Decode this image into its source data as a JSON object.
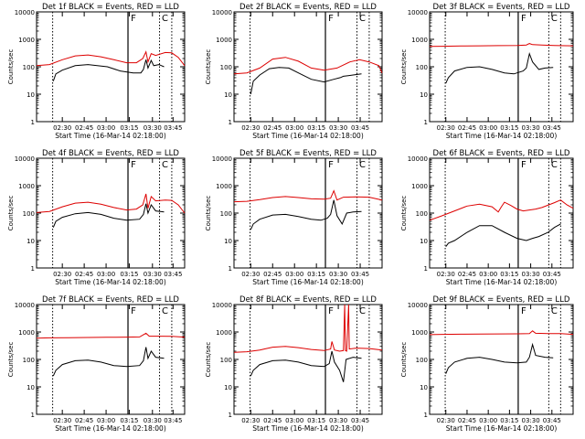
{
  "chart_data": {
    "type": "line",
    "yscale": "log",
    "ylim": [
      1,
      10000
    ],
    "y_ticks": [
      "1",
      "10",
      "100",
      "1000",
      "10000"
    ],
    "xlabel": "Start Time (16-Mar-14 02:18:00)",
    "ylabel": "Counts/sec",
    "x_ticks_left": [
      "02:30",
      "02:45",
      "03:00",
      "03:15",
      "03:30",
      "03:45"
    ],
    "x_ticks_right": [
      "02:30",
      "02:45",
      "03:00",
      "03:15",
      "03:30",
      "03:45"
    ],
    "colors": {
      "events": "#000000",
      "lld": "#dd0000"
    },
    "panels": [
      {
        "title": "Det 1f BLACK = Events, RED = LLD",
        "markers": [
          "F",
          "C"
        ],
        "events": [
          [
            2.6,
            30
          ],
          [
            3.0,
            55
          ],
          [
            4.0,
            75
          ],
          [
            6.0,
            110
          ],
          [
            8.0,
            120
          ],
          [
            11.0,
            100
          ],
          [
            13.0,
            70
          ],
          [
            15.0,
            60
          ],
          [
            16.2,
            60
          ],
          [
            16.6,
            80
          ],
          [
            17.0,
            180
          ],
          [
            17.3,
            90
          ],
          [
            17.8,
            170
          ],
          [
            18.2,
            110
          ],
          [
            19.0,
            120
          ],
          [
            19.8,
            100
          ]
        ],
        "lld": [
          [
            0.0,
            110
          ],
          [
            2.0,
            120
          ],
          [
            4.0,
            180
          ],
          [
            6.0,
            250
          ],
          [
            8.0,
            270
          ],
          [
            10.0,
            230
          ],
          [
            12.0,
            180
          ],
          [
            14.0,
            140
          ],
          [
            15.5,
            140
          ],
          [
            16.5,
            200
          ],
          [
            17.0,
            350
          ],
          [
            17.3,
            150
          ],
          [
            17.8,
            300
          ],
          [
            18.5,
            260
          ],
          [
            20.0,
            330
          ],
          [
            21.0,
            320
          ],
          [
            22.0,
            220
          ],
          [
            23.0,
            110
          ]
        ]
      },
      {
        "title": "Det 2f BLACK = Events, RED = LLD",
        "markers": [
          "F",
          "C"
        ],
        "events": [
          [
            2.6,
            10
          ],
          [
            3.0,
            30
          ],
          [
            4.0,
            50
          ],
          [
            5.5,
            85
          ],
          [
            7.0,
            95
          ],
          [
            8.5,
            90
          ],
          [
            10.0,
            60
          ],
          [
            12.0,
            35
          ],
          [
            14.0,
            28
          ],
          [
            15.5,
            35
          ],
          [
            16.5,
            40
          ],
          [
            17.0,
            45
          ],
          [
            18.5,
            50
          ],
          [
            19.8,
            55
          ]
        ],
        "lld": [
          [
            0.0,
            55
          ],
          [
            2.0,
            60
          ],
          [
            4.0,
            90
          ],
          [
            6.0,
            190
          ],
          [
            8.0,
            220
          ],
          [
            10.0,
            160
          ],
          [
            12.0,
            90
          ],
          [
            14.0,
            75
          ],
          [
            16.0,
            90
          ],
          [
            18.0,
            150
          ],
          [
            19.5,
            180
          ],
          [
            21.0,
            150
          ],
          [
            22.5,
            110
          ],
          [
            23.0,
            60
          ]
        ]
      },
      {
        "title": "Det 3f BLACK = Events, RED = LLD",
        "markers": [
          "F",
          "C"
        ],
        "events": [
          [
            2.6,
            25
          ],
          [
            3.0,
            40
          ],
          [
            4.0,
            70
          ],
          [
            6.0,
            95
          ],
          [
            8.0,
            100
          ],
          [
            10.0,
            80
          ],
          [
            12.0,
            60
          ],
          [
            13.5,
            55
          ],
          [
            15.0,
            70
          ],
          [
            15.5,
            90
          ],
          [
            16.0,
            300
          ],
          [
            16.5,
            150
          ],
          [
            17.5,
            80
          ],
          [
            18.5,
            90
          ],
          [
            19.8,
            95
          ]
        ],
        "lld": [
          [
            0.0,
            550
          ],
          [
            2.0,
            560
          ],
          [
            5.0,
            570
          ],
          [
            8.0,
            580
          ],
          [
            11.0,
            590
          ],
          [
            14.0,
            600
          ],
          [
            15.5,
            620
          ],
          [
            16.0,
            700
          ],
          [
            16.5,
            640
          ],
          [
            18.0,
            620
          ],
          [
            20.0,
            600
          ],
          [
            23.0,
            580
          ]
        ]
      },
      {
        "title": "Det 4f BLACK = Events, RED = LLD",
        "markers": [
          "F",
          "C"
        ],
        "events": [
          [
            2.6,
            30
          ],
          [
            3.0,
            50
          ],
          [
            4.0,
            70
          ],
          [
            6.0,
            95
          ],
          [
            8.0,
            105
          ],
          [
            10.0,
            90
          ],
          [
            12.0,
            65
          ],
          [
            14.0,
            55
          ],
          [
            16.0,
            60
          ],
          [
            16.6,
            90
          ],
          [
            17.0,
            220
          ],
          [
            17.3,
            100
          ],
          [
            17.8,
            200
          ],
          [
            18.5,
            120
          ],
          [
            19.8,
            110
          ]
        ],
        "lld": [
          [
            0.0,
            105
          ],
          [
            2.0,
            115
          ],
          [
            4.0,
            170
          ],
          [
            6.0,
            230
          ],
          [
            8.0,
            250
          ],
          [
            10.0,
            210
          ],
          [
            12.0,
            160
          ],
          [
            14.0,
            130
          ],
          [
            15.5,
            140
          ],
          [
            16.5,
            200
          ],
          [
            17.0,
            500
          ],
          [
            17.3,
            150
          ],
          [
            17.8,
            400
          ],
          [
            18.5,
            280
          ],
          [
            20.0,
            300
          ],
          [
            21.0,
            290
          ],
          [
            22.0,
            200
          ],
          [
            23.0,
            100
          ]
        ]
      },
      {
        "title": "Det 5f BLACK = Events, RED = LLD",
        "markers": [
          "F",
          "C"
        ],
        "events": [
          [
            2.6,
            25
          ],
          [
            3.0,
            40
          ],
          [
            4.0,
            60
          ],
          [
            6.0,
            85
          ],
          [
            8.0,
            90
          ],
          [
            10.0,
            75
          ],
          [
            12.0,
            60
          ],
          [
            13.5,
            55
          ],
          [
            14.5,
            65
          ],
          [
            15.0,
            90
          ],
          [
            15.5,
            300
          ],
          [
            16.0,
            80
          ],
          [
            16.8,
            40
          ],
          [
            17.5,
            100
          ],
          [
            18.5,
            110
          ],
          [
            19.8,
            115
          ]
        ],
        "lld": [
          [
            0.0,
            260
          ],
          [
            2.0,
            270
          ],
          [
            4.0,
            310
          ],
          [
            6.0,
            370
          ],
          [
            8.0,
            400
          ],
          [
            10.0,
            370
          ],
          [
            12.0,
            330
          ],
          [
            14.0,
            320
          ],
          [
            15.0,
            350
          ],
          [
            15.5,
            650
          ],
          [
            16.0,
            300
          ],
          [
            17.0,
            380
          ],
          [
            19.0,
            390
          ],
          [
            21.0,
            380
          ],
          [
            23.0,
            300
          ]
        ]
      },
      {
        "title": "Det 6f BLACK = Events, RED = LLD",
        "markers": [
          "F",
          "C"
        ],
        "events": [
          [
            2.6,
            6
          ],
          [
            3.0,
            8
          ],
          [
            4.0,
            10
          ],
          [
            6.0,
            20
          ],
          [
            8.0,
            35
          ],
          [
            10.0,
            35
          ],
          [
            12.0,
            20
          ],
          [
            14.0,
            12
          ],
          [
            15.5,
            10
          ],
          [
            16.5,
            12
          ],
          [
            17.5,
            14
          ],
          [
            19.0,
            20
          ],
          [
            20.0,
            30
          ],
          [
            21.0,
            40
          ]
        ],
        "lld": [
          [
            0.0,
            55
          ],
          [
            2.0,
            80
          ],
          [
            4.0,
            120
          ],
          [
            6.0,
            180
          ],
          [
            8.0,
            210
          ],
          [
            10.0,
            170
          ],
          [
            11.0,
            110
          ],
          [
            11.5,
            170
          ],
          [
            12.0,
            250
          ],
          [
            13.0,
            190
          ],
          [
            14.0,
            140
          ],
          [
            15.0,
            120
          ],
          [
            16.0,
            130
          ],
          [
            17.0,
            140
          ],
          [
            18.0,
            160
          ],
          [
            20.0,
            240
          ],
          [
            21.0,
            300
          ],
          [
            22.0,
            200
          ],
          [
            23.0,
            150
          ]
        ]
      },
      {
        "title": "Det 7f BLACK = Events, RED = LLD",
        "markers": [
          "F",
          "C"
        ],
        "events": [
          [
            2.6,
            25
          ],
          [
            3.0,
            40
          ],
          [
            4.0,
            65
          ],
          [
            6.0,
            90
          ],
          [
            8.0,
            95
          ],
          [
            10.0,
            80
          ],
          [
            12.0,
            60
          ],
          [
            14.0,
            55
          ],
          [
            16.0,
            60
          ],
          [
            16.6,
            90
          ],
          [
            17.0,
            280
          ],
          [
            17.3,
            110
          ],
          [
            17.8,
            200
          ],
          [
            18.5,
            120
          ],
          [
            19.8,
            110
          ]
        ],
        "lld": [
          [
            0.0,
            600
          ],
          [
            2.0,
            610
          ],
          [
            5.0,
            620
          ],
          [
            8.0,
            630
          ],
          [
            11.0,
            640
          ],
          [
            14.0,
            650
          ],
          [
            16.0,
            660
          ],
          [
            17.0,
            900
          ],
          [
            17.5,
            700
          ],
          [
            19.0,
            700
          ],
          [
            21.0,
            690
          ],
          [
            23.0,
            650
          ]
        ]
      },
      {
        "title": "Det 8f BLACK = Events, RED = LLD",
        "markers": [
          "F",
          "C"
        ],
        "events": [
          [
            2.6,
            25
          ],
          [
            3.0,
            40
          ],
          [
            4.0,
            65
          ],
          [
            6.0,
            90
          ],
          [
            8.0,
            95
          ],
          [
            10.0,
            80
          ],
          [
            12.0,
            60
          ],
          [
            14.0,
            55
          ],
          [
            14.8,
            70
          ],
          [
            15.2,
            200
          ],
          [
            15.6,
            80
          ],
          [
            16.4,
            40
          ],
          [
            17.0,
            15
          ],
          [
            17.4,
            100
          ],
          [
            18.5,
            120
          ],
          [
            19.8,
            110
          ]
        ],
        "lld": [
          [
            0.0,
            180
          ],
          [
            2.0,
            190
          ],
          [
            4.0,
            220
          ],
          [
            6.0,
            280
          ],
          [
            8.0,
            300
          ],
          [
            10.0,
            270
          ],
          [
            12.0,
            230
          ],
          [
            14.0,
            210
          ],
          [
            15.0,
            240
          ],
          [
            15.2,
            450
          ],
          [
            15.6,
            220
          ],
          [
            16.4,
            200
          ],
          [
            17.0,
            210
          ],
          [
            17.2,
            10000
          ],
          [
            17.3,
            210
          ],
          [
            17.5,
            200
          ],
          [
            17.8,
            10000
          ],
          [
            17.9,
            240
          ],
          [
            19.0,
            260
          ],
          [
            21.0,
            250
          ],
          [
            23.0,
            220
          ]
        ]
      },
      {
        "title": "Det 9f BLACK = Events, RED = LLD",
        "markers": [
          "F",
          "C"
        ],
        "events": [
          [
            2.6,
            30
          ],
          [
            3.0,
            50
          ],
          [
            4.0,
            80
          ],
          [
            6.0,
            110
          ],
          [
            8.0,
            120
          ],
          [
            10.0,
            100
          ],
          [
            12.0,
            80
          ],
          [
            14.0,
            75
          ],
          [
            15.5,
            80
          ],
          [
            16.0,
            120
          ],
          [
            16.5,
            350
          ],
          [
            17.0,
            140
          ],
          [
            18.5,
            120
          ],
          [
            19.8,
            115
          ]
        ],
        "lld": [
          [
            0.0,
            800
          ],
          [
            2.0,
            820
          ],
          [
            5.0,
            830
          ],
          [
            8.0,
            840
          ],
          [
            11.0,
            850
          ],
          [
            14.0,
            860
          ],
          [
            16.0,
            870
          ],
          [
            16.5,
            1100
          ],
          [
            17.0,
            900
          ],
          [
            19.0,
            880
          ],
          [
            21.0,
            870
          ],
          [
            23.0,
            820
          ]
        ]
      }
    ]
  }
}
